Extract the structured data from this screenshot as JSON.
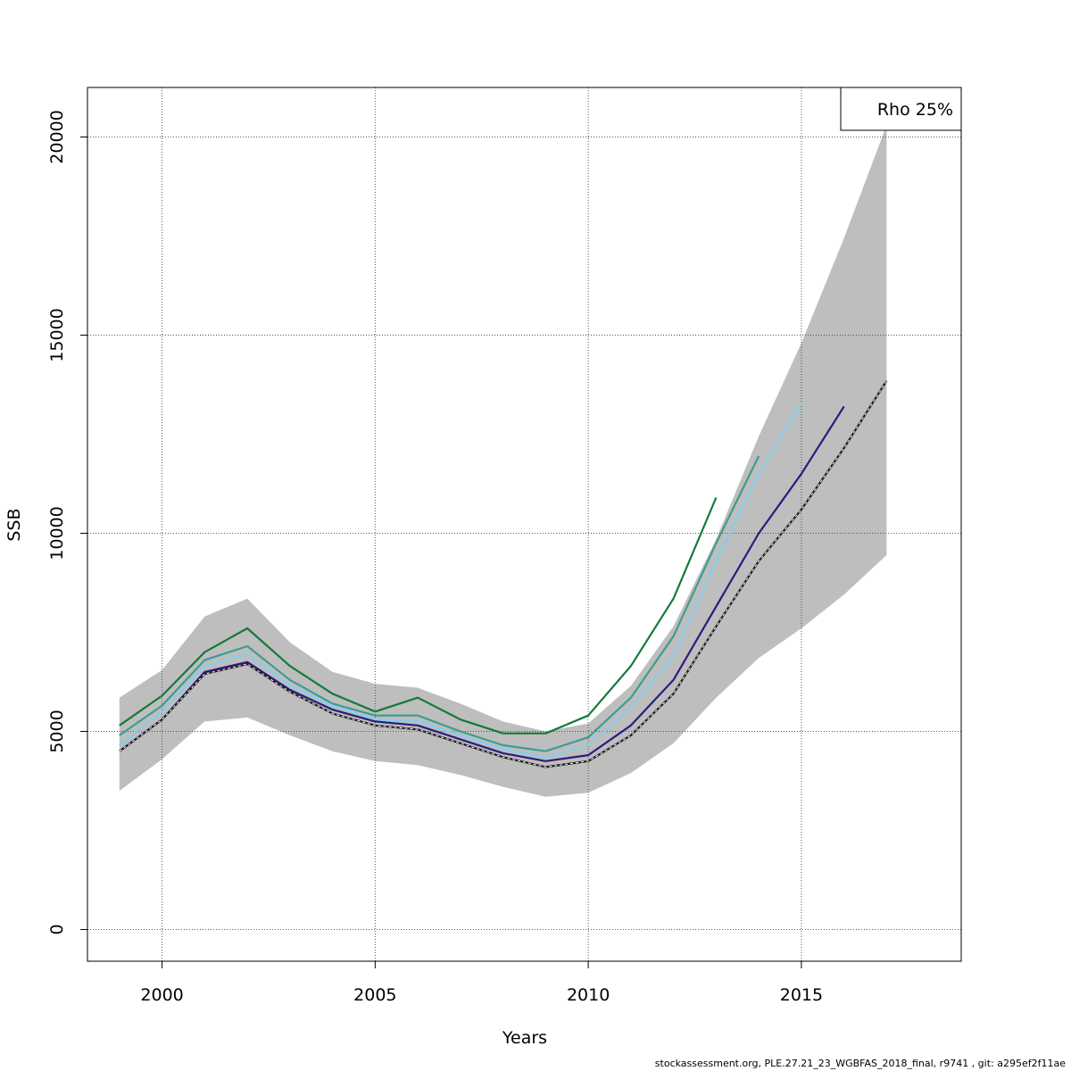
{
  "chart_data": {
    "type": "line",
    "title": "",
    "xlabel": "Years",
    "ylabel": "SSB",
    "xlim": [
      1998.25,
      2018.75
    ],
    "ylim": [
      -800,
      21250
    ],
    "x_ticks": [
      2000,
      2005,
      2010,
      2015
    ],
    "y_ticks": [
      0,
      5000,
      10000,
      15000,
      20000
    ],
    "grid": true,
    "legend": {
      "position": "top-right",
      "label": "Rho 25%"
    },
    "band": {
      "color": "#bebebe",
      "x": [
        1999,
        2000,
        2001,
        2002,
        2003,
        2004,
        2005,
        2006,
        2007,
        2008,
        2009,
        2010,
        2011,
        2012,
        2013,
        2014,
        2015,
        2016,
        2017
      ],
      "lower": [
        3500,
        4300,
        5250,
        5350,
        4900,
        4500,
        4250,
        4150,
        3900,
        3600,
        3350,
        3450,
        3950,
        4700,
        5850,
        6850,
        7600,
        8450,
        9450
      ],
      "upper": [
        5850,
        6550,
        7900,
        8350,
        7250,
        6500,
        6200,
        6100,
        5700,
        5250,
        5000,
        5200,
        6150,
        7650,
        9850,
        12450,
        14800,
        17450,
        20300
      ]
    },
    "series": [
      {
        "color": "#1a1a1a",
        "dashed": true,
        "x": [
          1999,
          2000,
          2001,
          2002,
          2003,
          2004,
          2005,
          2006,
          2007,
          2008,
          2009,
          2010,
          2011,
          2012,
          2013,
          2014,
          2015,
          2016,
          2017
        ],
        "values": [
          4500,
          5300,
          6450,
          6700,
          6000,
          5450,
          5150,
          5050,
          4700,
          4350,
          4100,
          4250,
          4900,
          5950,
          7650,
          9300,
          10600,
          12150,
          13850
        ]
      },
      {
        "color": "#2e1a80",
        "dashed": false,
        "x": [
          1999,
          2000,
          2001,
          2002,
          2003,
          2004,
          2005,
          2006,
          2007,
          2008,
          2009,
          2010,
          2011,
          2012,
          2013,
          2014,
          2015,
          2016
        ],
        "values": [
          4500,
          5300,
          6500,
          6750,
          6050,
          5550,
          5250,
          5150,
          4800,
          4450,
          4250,
          4400,
          5150,
          6300,
          8150,
          10000,
          11500,
          13200
        ]
      },
      {
        "color": "#87ceeb",
        "dashed": false,
        "x": [
          1999,
          2000,
          2001,
          2002,
          2003,
          2004,
          2005,
          2006,
          2007,
          2008,
          2009,
          2010,
          2011,
          2012,
          2013,
          2014,
          2015
        ],
        "values": [
          4650,
          5500,
          6650,
          6950,
          6150,
          5650,
          5300,
          5250,
          4900,
          4550,
          4350,
          4650,
          5600,
          6900,
          9300,
          11500,
          13300
        ]
      },
      {
        "color": "#3a9e8f",
        "dashed": false,
        "x": [
          1999,
          2000,
          2001,
          2002,
          2003,
          2004,
          2005,
          2006,
          2007,
          2008,
          2009,
          2010,
          2011,
          2012,
          2013,
          2014
        ],
        "values": [
          4900,
          5650,
          6800,
          7150,
          6300,
          5700,
          5400,
          5400,
          5000,
          4650,
          4500,
          4850,
          5850,
          7400,
          9750,
          11950
        ]
      },
      {
        "color": "#137a3a",
        "dashed": false,
        "x": [
          1999,
          2000,
          2001,
          2002,
          2003,
          2004,
          2005,
          2006,
          2007,
          2008,
          2009,
          2010,
          2011,
          2012,
          2013
        ],
        "values": [
          5150,
          5900,
          7000,
          7600,
          6650,
          5950,
          5500,
          5850,
          5300,
          4950,
          4950,
          5400,
          6650,
          8350,
          10900
        ]
      }
    ]
  },
  "footer": "stockassessment.org, PLE.27.21_23_WGBFAS_2018_final, r9741 , git: a295ef2f11ae"
}
